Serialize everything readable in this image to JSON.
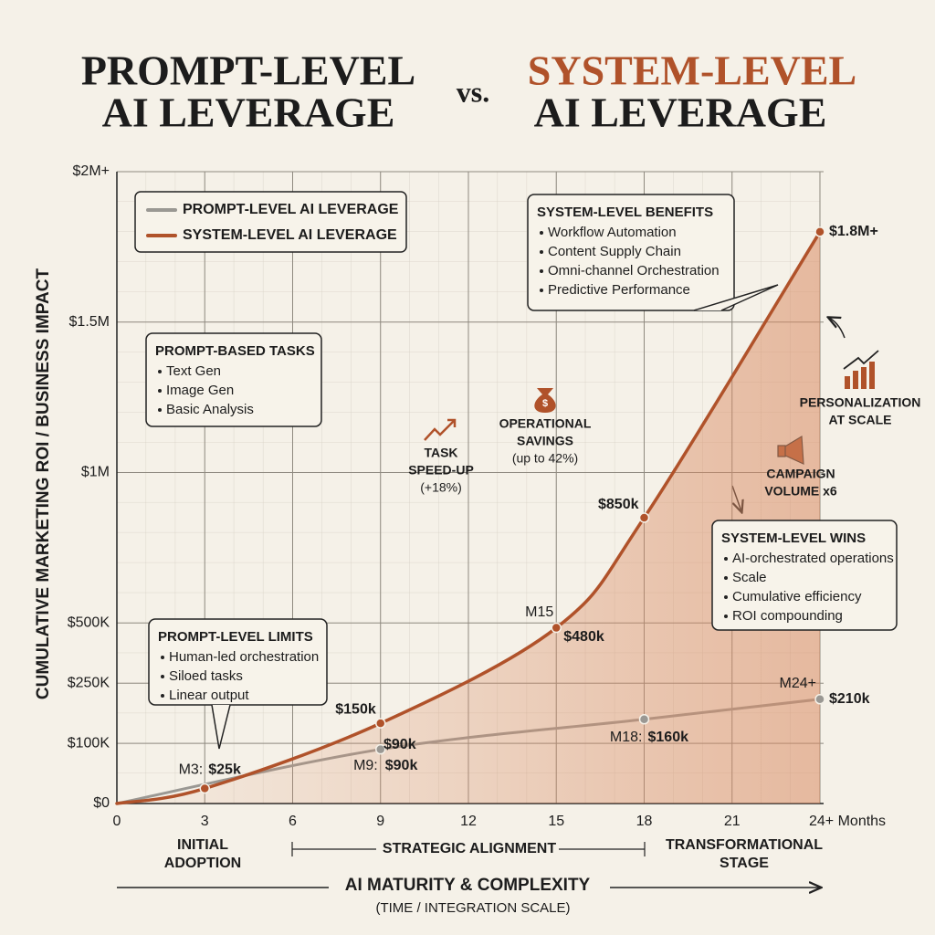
{
  "chart_data": {
    "type": "line",
    "title": {
      "left": [
        "PROMPT-LEVEL",
        "AI LEVERAGE"
      ],
      "connector": "vs.",
      "right": [
        "SYSTEM-LEVEL",
        "AI LEVERAGE"
      ]
    },
    "y_label": "CUMULATIVE MARKETING ROI / BUSINESS IMPACT",
    "x_label": "AI MATURITY & COMPLEXITY",
    "x_sublabel": "(TIME / INTEGRATION SCALE)",
    "xlim": [
      0,
      24
    ],
    "xticks": [
      0,
      3,
      6,
      9,
      12,
      15,
      18,
      21,
      {
        "value": 24,
        "label": "24+ Months"
      }
    ],
    "ylim": [
      0,
      2000000
    ],
    "yticks": [
      {
        "value": 0,
        "label": "$0"
      },
      {
        "value": 100000,
        "label": "$100K"
      },
      {
        "value": 250000,
        "label": "$250K"
      },
      {
        "value": 500000,
        "label": "$500K"
      },
      {
        "value": 1000000,
        "label": "$1M"
      },
      {
        "value": 1500000,
        "label": "$1.5M"
      },
      {
        "value": 2000000,
        "label": "$2M+"
      }
    ],
    "grid": true,
    "series": [
      {
        "name": "PROMPT-LEVEL AI LEVERAGE",
        "color": "#9a9893",
        "x": [
          0,
          9,
          18,
          24
        ],
        "values": [
          0,
          90000,
          160000,
          210000
        ],
        "value_labels": [
          null,
          "$90k",
          "$160k",
          "$210k"
        ],
        "point_tags": [
          null,
          "M9:",
          "M18:",
          "M24+"
        ]
      },
      {
        "name": "SYSTEM-LEVEL AI LEVERAGE",
        "color": "#b0522a",
        "x": [
          0,
          3,
          9,
          15,
          18,
          24
        ],
        "values": [
          0,
          25000,
          150000,
          480000,
          850000,
          1800000
        ],
        "value_labels": [
          null,
          "$25k",
          "$150k",
          "$480k",
          "$850k",
          "$1.8M+"
        ],
        "point_tags": [
          null,
          "M3:",
          null,
          "M15",
          null,
          null
        ]
      }
    ],
    "annotations": [
      {
        "text": "$90k"
      }
    ],
    "boxes": [
      {
        "title": "SYSTEM-LEVEL BENEFITS",
        "items": [
          "Workflow Automation",
          "Content Supply Chain",
          "Omni-channel Orchestration",
          "Predictive Performance"
        ]
      },
      {
        "title": "PROMPT-BASED TASKS",
        "items": [
          "Text Gen",
          "Image Gen",
          "Basic Analysis"
        ]
      },
      {
        "title": "PROMPT-LEVEL LIMITS",
        "items": [
          "Human-led orchestration",
          "Siloed tasks",
          "Linear output"
        ]
      },
      {
        "title": "SYSTEM-LEVEL WINS",
        "items": [
          "AI-orchestrated operations",
          "Scale",
          "Cumulative efficiency",
          "ROI compounding"
        ]
      }
    ],
    "callouts": [
      {
        "lines": [
          "TASK",
          "SPEED-UP",
          "(+18%)"
        ]
      },
      {
        "lines": [
          "OPERATIONAL",
          "SAVINGS",
          "(up to 42%)"
        ]
      },
      {
        "lines": [
          "PERSONALIZATION",
          "AT SCALE"
        ]
      },
      {
        "lines": [
          "CAMPAIGN",
          "VOLUME x6"
        ]
      }
    ],
    "stages": [
      {
        "lines": [
          "INITIAL",
          "ADOPTION"
        ]
      },
      {
        "lines": [
          "STRATEGIC ALIGNMENT"
        ]
      },
      {
        "lines": [
          "TRANSFORMATIONAL",
          "STAGE"
        ]
      }
    ]
  }
}
